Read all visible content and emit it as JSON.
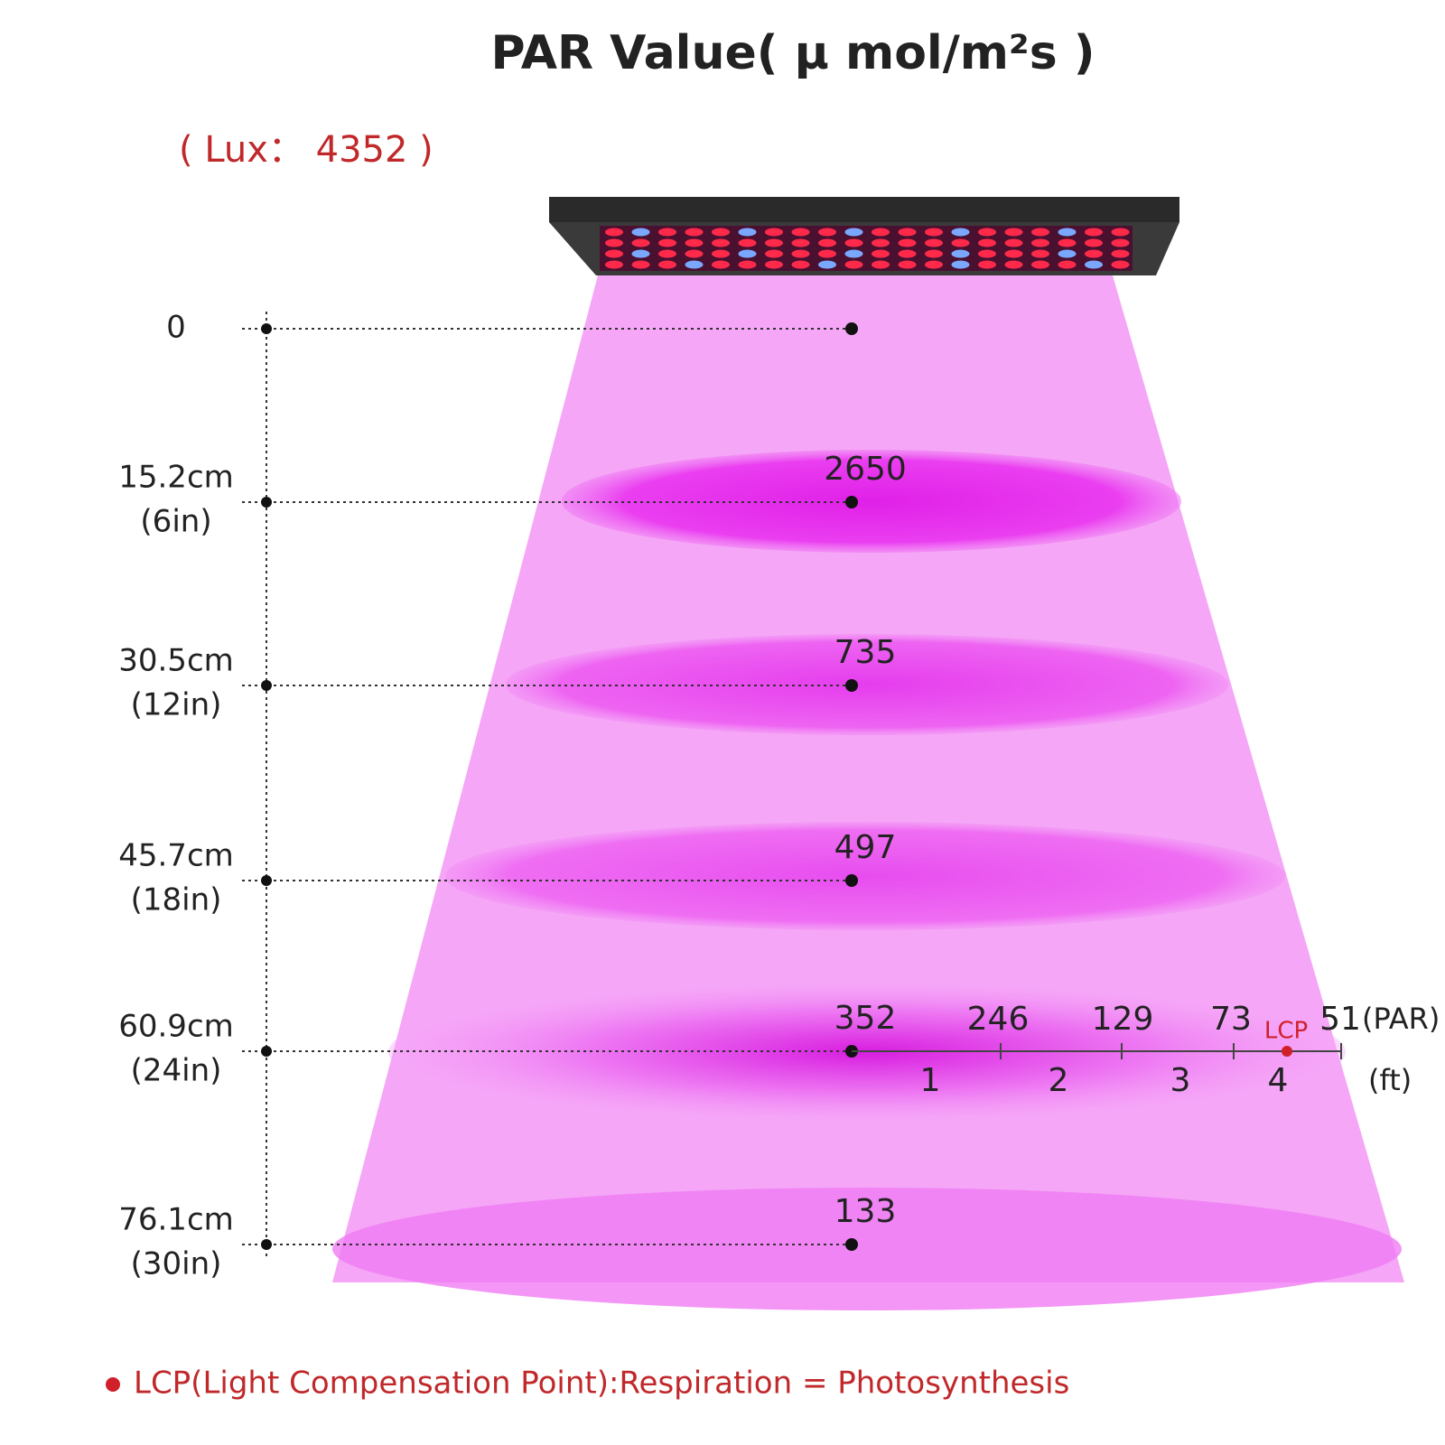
{
  "title": "PAR Value( μ mol/m²s )",
  "lux_label": "( Lux： 4352 )",
  "levels": [
    {
      "cm": "0"
    },
    {
      "cm": "15.2cm",
      "in": "(6in)",
      "par": "2650"
    },
    {
      "cm": "30.5cm",
      "in": "(12in)",
      "par": "735"
    },
    {
      "cm": "45.7cm",
      "in": "(18in)",
      "par": "497"
    },
    {
      "cm": "60.9cm",
      "in": "(24in)",
      "par": "352"
    },
    {
      "cm": "76.1cm",
      "in": "(30in)",
      "par": "133"
    }
  ],
  "spread": {
    "par": [
      "246",
      "129",
      "73",
      "51"
    ],
    "par_unit": "(PAR)",
    "lcp": "LCP",
    "feet": [
      "1",
      "2",
      "3",
      "4"
    ],
    "feet_unit": "(ft)"
  },
  "footnote": "LCP(Light Compensation Point):Respiration = Photosynthesis"
}
